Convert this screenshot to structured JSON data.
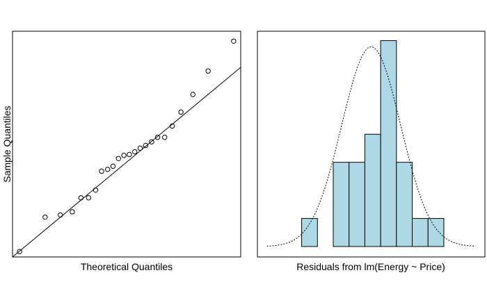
{
  "chart_data": [
    {
      "type": "scatter",
      "subtype": "qq-plot",
      "title": "",
      "xlabel": "Theoretical Quantiles",
      "ylabel": "Sample Quantiles",
      "xlim": [
        -2.1,
        2.1
      ],
      "ylim": [
        -2.1,
        2.9
      ],
      "axes_ticks_shown": false,
      "grid": false,
      "reference_line": {
        "intercept": 0,
        "slope": 1
      },
      "points": {
        "x": [
          -1.97,
          -1.5,
          -1.22,
          -1.0,
          -0.84,
          -0.7,
          -0.57,
          -0.46,
          -0.35,
          -0.25,
          -0.15,
          -0.05,
          0.05,
          0.15,
          0.25,
          0.35,
          0.46,
          0.57,
          0.7,
          0.84,
          1.0,
          1.22,
          1.5,
          1.97
        ],
        "y": [
          -1.98,
          -1.22,
          -1.17,
          -1.1,
          -0.79,
          -0.79,
          -0.62,
          -0.2,
          -0.16,
          -0.09,
          0.08,
          0.15,
          0.17,
          0.23,
          0.31,
          0.37,
          0.45,
          0.55,
          0.55,
          0.8,
          1.11,
          1.5,
          2.02,
          2.68
        ]
      }
    },
    {
      "type": "histogram",
      "title": "",
      "xlabel": "Residuals from lm(Energy ~ Price)",
      "ylabel": "",
      "axes_ticks_shown": false,
      "grid": false,
      "bin_edges": [
        -4.4,
        -3.4,
        -2.4,
        -1.4,
        -0.4,
        0.6,
        1.6,
        2.6,
        3.6,
        4.6
      ],
      "density": [
        0.03,
        0.0,
        0.09,
        0.09,
        0.12,
        0.22,
        0.09,
        0.03,
        0.03
      ],
      "xlim": [
        -7.2,
        7.2
      ],
      "ylim": [
        0,
        0.23
      ],
      "bar_color": "#add8e6",
      "normal_curve": {
        "mean": 0.0,
        "sd": 1.87,
        "style": "dotted"
      }
    }
  ]
}
